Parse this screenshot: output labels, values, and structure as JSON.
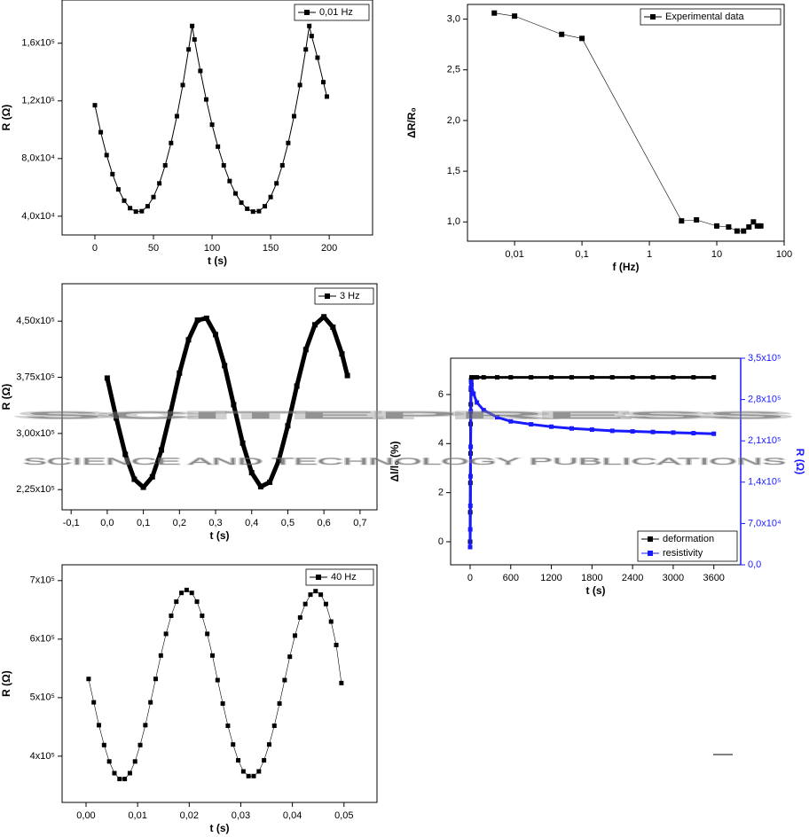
{
  "chart_data": [
    {
      "type": "line",
      "xlabel": "t (s)",
      "ylabel": "R (Ω)",
      "legend": "upper right",
      "x": [
        0,
        5,
        10,
        15,
        20,
        25,
        30,
        35,
        40,
        45,
        50,
        55,
        60,
        65,
        70,
        75,
        80,
        83,
        85,
        90,
        95,
        100,
        105,
        110,
        115,
        120,
        125,
        130,
        135,
        140,
        145,
        150,
        155,
        160,
        165,
        170,
        175,
        180,
        183,
        185,
        190,
        195,
        198
      ],
      "series": [
        {
          "name": "0,01 Hz",
          "color": "#000000",
          "values": [
            117000,
            98300,
            82400,
            69200,
            58600,
            50800,
            45600,
            43200,
            43500,
            46900,
            53300,
            62800,
            75300,
            90800,
            109400,
            131000,
            155700,
            172000,
            162600,
            140800,
            121000,
            103500,
            88300,
            75300,
            64400,
            55800,
            49400,
            45200,
            43200,
            43500,
            46900,
            53300,
            62800,
            75300,
            90800,
            109400,
            131000,
            155700,
            172000,
            165000,
            150000,
            133000,
            123000
          ]
        }
      ],
      "xlim": [
        -28,
        237
      ],
      "xticks": [
        0,
        50,
        100,
        150,
        200
      ],
      "ylim": [
        27000,
        190000
      ],
      "yticks": [
        {
          "value": 40000,
          "label": "4,0x10⁴"
        },
        {
          "value": 80000,
          "label": "8,0x10⁴"
        },
        {
          "value": 120000,
          "label": "1,2x10⁵"
        },
        {
          "value": 160000,
          "label": "1,6x10⁵"
        }
      ]
    },
    {
      "type": "line",
      "xlabel": "f (Hz)",
      "ylabel": "ΔR/R₀",
      "legend": "upper right",
      "xlog": true,
      "x": [
        0.005,
        0.01,
        0.05,
        0.1,
        3,
        5,
        10,
        15,
        20,
        25,
        30,
        35,
        40,
        45
      ],
      "series": [
        {
          "name": "Experimental data",
          "color": "#000000",
          "values": [
            3.06,
            3.03,
            2.85,
            2.81,
            1.01,
            1.02,
            0.96,
            0.95,
            0.91,
            0.91,
            0.95,
            1.0,
            0.96,
            0.96
          ]
        }
      ],
      "xlim": [
        0.002,
        100
      ],
      "xticks": [
        {
          "value": 0.01,
          "label": "0,01"
        },
        {
          "value": 0.1,
          "label": "0,1"
        },
        1,
        10,
        100
      ],
      "ylim": [
        0.81,
        3.145
      ],
      "yticks": [
        {
          "value": 1,
          "label": "1,0"
        },
        {
          "value": 1.5,
          "label": "1,5"
        },
        {
          "value": 2,
          "label": "2,0"
        },
        {
          "value": 2.5,
          "label": "2,5"
        },
        {
          "value": 3,
          "label": "3,0"
        }
      ]
    },
    {
      "type": "line",
      "xlabel": "t (s)",
      "ylabel": "R (Ω)",
      "legend": "upper right",
      "x": [
        0,
        0.025,
        0.05,
        0.075,
        0.1,
        0.125,
        0.15,
        0.175,
        0.2,
        0.225,
        0.25,
        0.275,
        0.3,
        0.325,
        0.35,
        0.375,
        0.4,
        0.425,
        0.45,
        0.475,
        0.5,
        0.525,
        0.55,
        0.575,
        0.6,
        0.625,
        0.65,
        0.665
      ],
      "series": [
        {
          "name": "3 Hz",
          "color": "#000000",
          "values": [
            374000,
            320700,
            272100,
            238800,
            228100,
            242100,
            277900,
            327600,
            380600,
            425100,
            451400,
            453900,
            432100,
            390600,
            338500,
            287100,
            247600,
            228900,
            234800,
            264000,
            310300,
            363300,
            412000,
            445200,
            455900,
            441900,
            406200,
            377300
          ]
        }
      ],
      "xlim": [
        -0.125,
        0.747
      ],
      "xticks": [
        {
          "value": -0.1,
          "label": "-0,1"
        },
        {
          "value": 0,
          "label": "0,0"
        },
        {
          "value": 0.1,
          "label": "0,1"
        },
        {
          "value": 0.2,
          "label": "0,2"
        },
        {
          "value": 0.3,
          "label": "0,3"
        },
        {
          "value": 0.4,
          "label": "0,4"
        },
        {
          "value": 0.5,
          "label": "0,5"
        },
        {
          "value": 0.6,
          "label": "0,6"
        },
        {
          "value": 0.7,
          "label": "0,7"
        }
      ],
      "ylim": [
        198000,
        500000
      ],
      "yticks": [
        {
          "value": 225000,
          "label": "2,25x10⁵"
        },
        {
          "value": 300000,
          "label": "3,00x10⁵"
        },
        {
          "value": 375000,
          "label": "3,75x10⁵"
        },
        {
          "value": 450000,
          "label": "4,50x10⁵"
        }
      ]
    },
    {
      "type": "line",
      "xlabel": "t (s)",
      "ylabel": "Δl/l₀ (%)",
      "y2label": "R (Ω)",
      "legend": "lower right",
      "x": [
        0,
        2,
        4,
        6,
        8,
        10,
        12,
        15,
        20,
        50,
        100,
        200,
        400,
        600,
        900,
        1200,
        1500,
        1800,
        2100,
        2400,
        2700,
        3000,
        3300,
        3600
      ],
      "series": [
        {
          "name": "deformation",
          "color": "#000000",
          "values": [
            0,
            1.2,
            2.4,
            3.6,
            4.8,
            5.6,
            6.2,
            6.6,
            6.7,
            6.7,
            6.7,
            6.7,
            6.7,
            6.7,
            6.7,
            6.7,
            6.7,
            6.7,
            6.7,
            6.7,
            6.7,
            6.7,
            6.7,
            6.7
          ]
        },
        {
          "name": "resistivity",
          "color": "#1a1aff",
          "axis": "y2",
          "values": [
            30000,
            60000,
            100000,
            150000,
            200000,
            260000,
            300000,
            310000,
            305000,
            290000,
            275000,
            262000,
            250000,
            243000,
            238000,
            234000,
            231000,
            229000,
            227000,
            226000,
            225000,
            224000,
            223000,
            222000
          ]
        }
      ],
      "xlim": [
        -288,
        3997
      ],
      "xticks": [
        0,
        600,
        1200,
        1800,
        2400,
        3000,
        3600
      ],
      "ylim": [
        -0.94,
        7.48
      ],
      "yticks": [
        0,
        2,
        4,
        6
      ],
      "y2lim": [
        0,
        350000
      ],
      "y2ticks": [
        {
          "value": 0,
          "label": "0,0"
        },
        {
          "value": 70000,
          "label": "7,0x10⁴"
        },
        {
          "value": 140000,
          "label": "1,4x10⁵"
        },
        {
          "value": 210000,
          "label": "2,1x10⁵"
        },
        {
          "value": 280000,
          "label": "2,8x10⁵"
        },
        {
          "value": 350000,
          "label": "3,5x10⁵"
        }
      ]
    },
    {
      "type": "line",
      "xlabel": "t (s)",
      "ylabel": "R (Ω)",
      "legend": "upper right",
      "x": [
        0.0005,
        0.0015,
        0.0025,
        0.0035,
        0.0045,
        0.0055,
        0.0065,
        0.0075,
        0.0085,
        0.0095,
        0.0105,
        0.0115,
        0.0125,
        0.0135,
        0.0145,
        0.0155,
        0.0165,
        0.0175,
        0.0185,
        0.0195,
        0.0205,
        0.0215,
        0.0225,
        0.0235,
        0.0245,
        0.0255,
        0.0265,
        0.0275,
        0.0285,
        0.0295,
        0.0305,
        0.0315,
        0.0325,
        0.0335,
        0.0345,
        0.0355,
        0.0365,
        0.0375,
        0.0385,
        0.0395,
        0.0405,
        0.0415,
        0.0425,
        0.0435,
        0.0445,
        0.0455,
        0.0465,
        0.0475,
        0.0485,
        0.0495
      ],
      "series": [
        {
          "name": "40 Hz",
          "color": "#000000",
          "values": [
            532000,
            492000,
            453000,
            419000,
            391000,
            371000,
            361000,
            361000,
            371000,
            391000,
            419000,
            453000,
            492000,
            532000,
            572000,
            609000,
            640000,
            664000,
            679000,
            684000,
            679000,
            664000,
            640000,
            609000,
            572000,
            530000,
            490000,
            452000,
            420000,
            393000,
            374000,
            366000,
            366000,
            374000,
            393000,
            420000,
            452000,
            490000,
            530000,
            570000,
            606000,
            637000,
            660000,
            676000,
            682000,
            676000,
            660000,
            630000,
            590000,
            525000
          ]
        }
      ],
      "xlim": [
        -0.00464,
        0.0564
      ],
      "xticks": [
        {
          "value": 0,
          "label": "0,00"
        },
        {
          "value": 0.01,
          "label": "0,01"
        },
        {
          "value": 0.02,
          "label": "0,02"
        },
        {
          "value": 0.03,
          "label": "0,03"
        },
        {
          "value": 0.04,
          "label": "0,04"
        },
        {
          "value": 0.05,
          "label": "0,05"
        }
      ],
      "ylim": [
        321000,
        727000
      ],
      "yticks": [
        {
          "value": 400000,
          "label": "4x10⁵"
        },
        {
          "value": 500000,
          "label": "5x10⁵"
        },
        {
          "value": 600000,
          "label": "6x10⁵"
        },
        {
          "value": 700000,
          "label": "7x10⁵"
        }
      ]
    }
  ],
  "watermark": {
    "title": "SCITEPRESS",
    "subtitle": "SCIENCE AND TECHNOLOGY PUBLICATIONS"
  }
}
